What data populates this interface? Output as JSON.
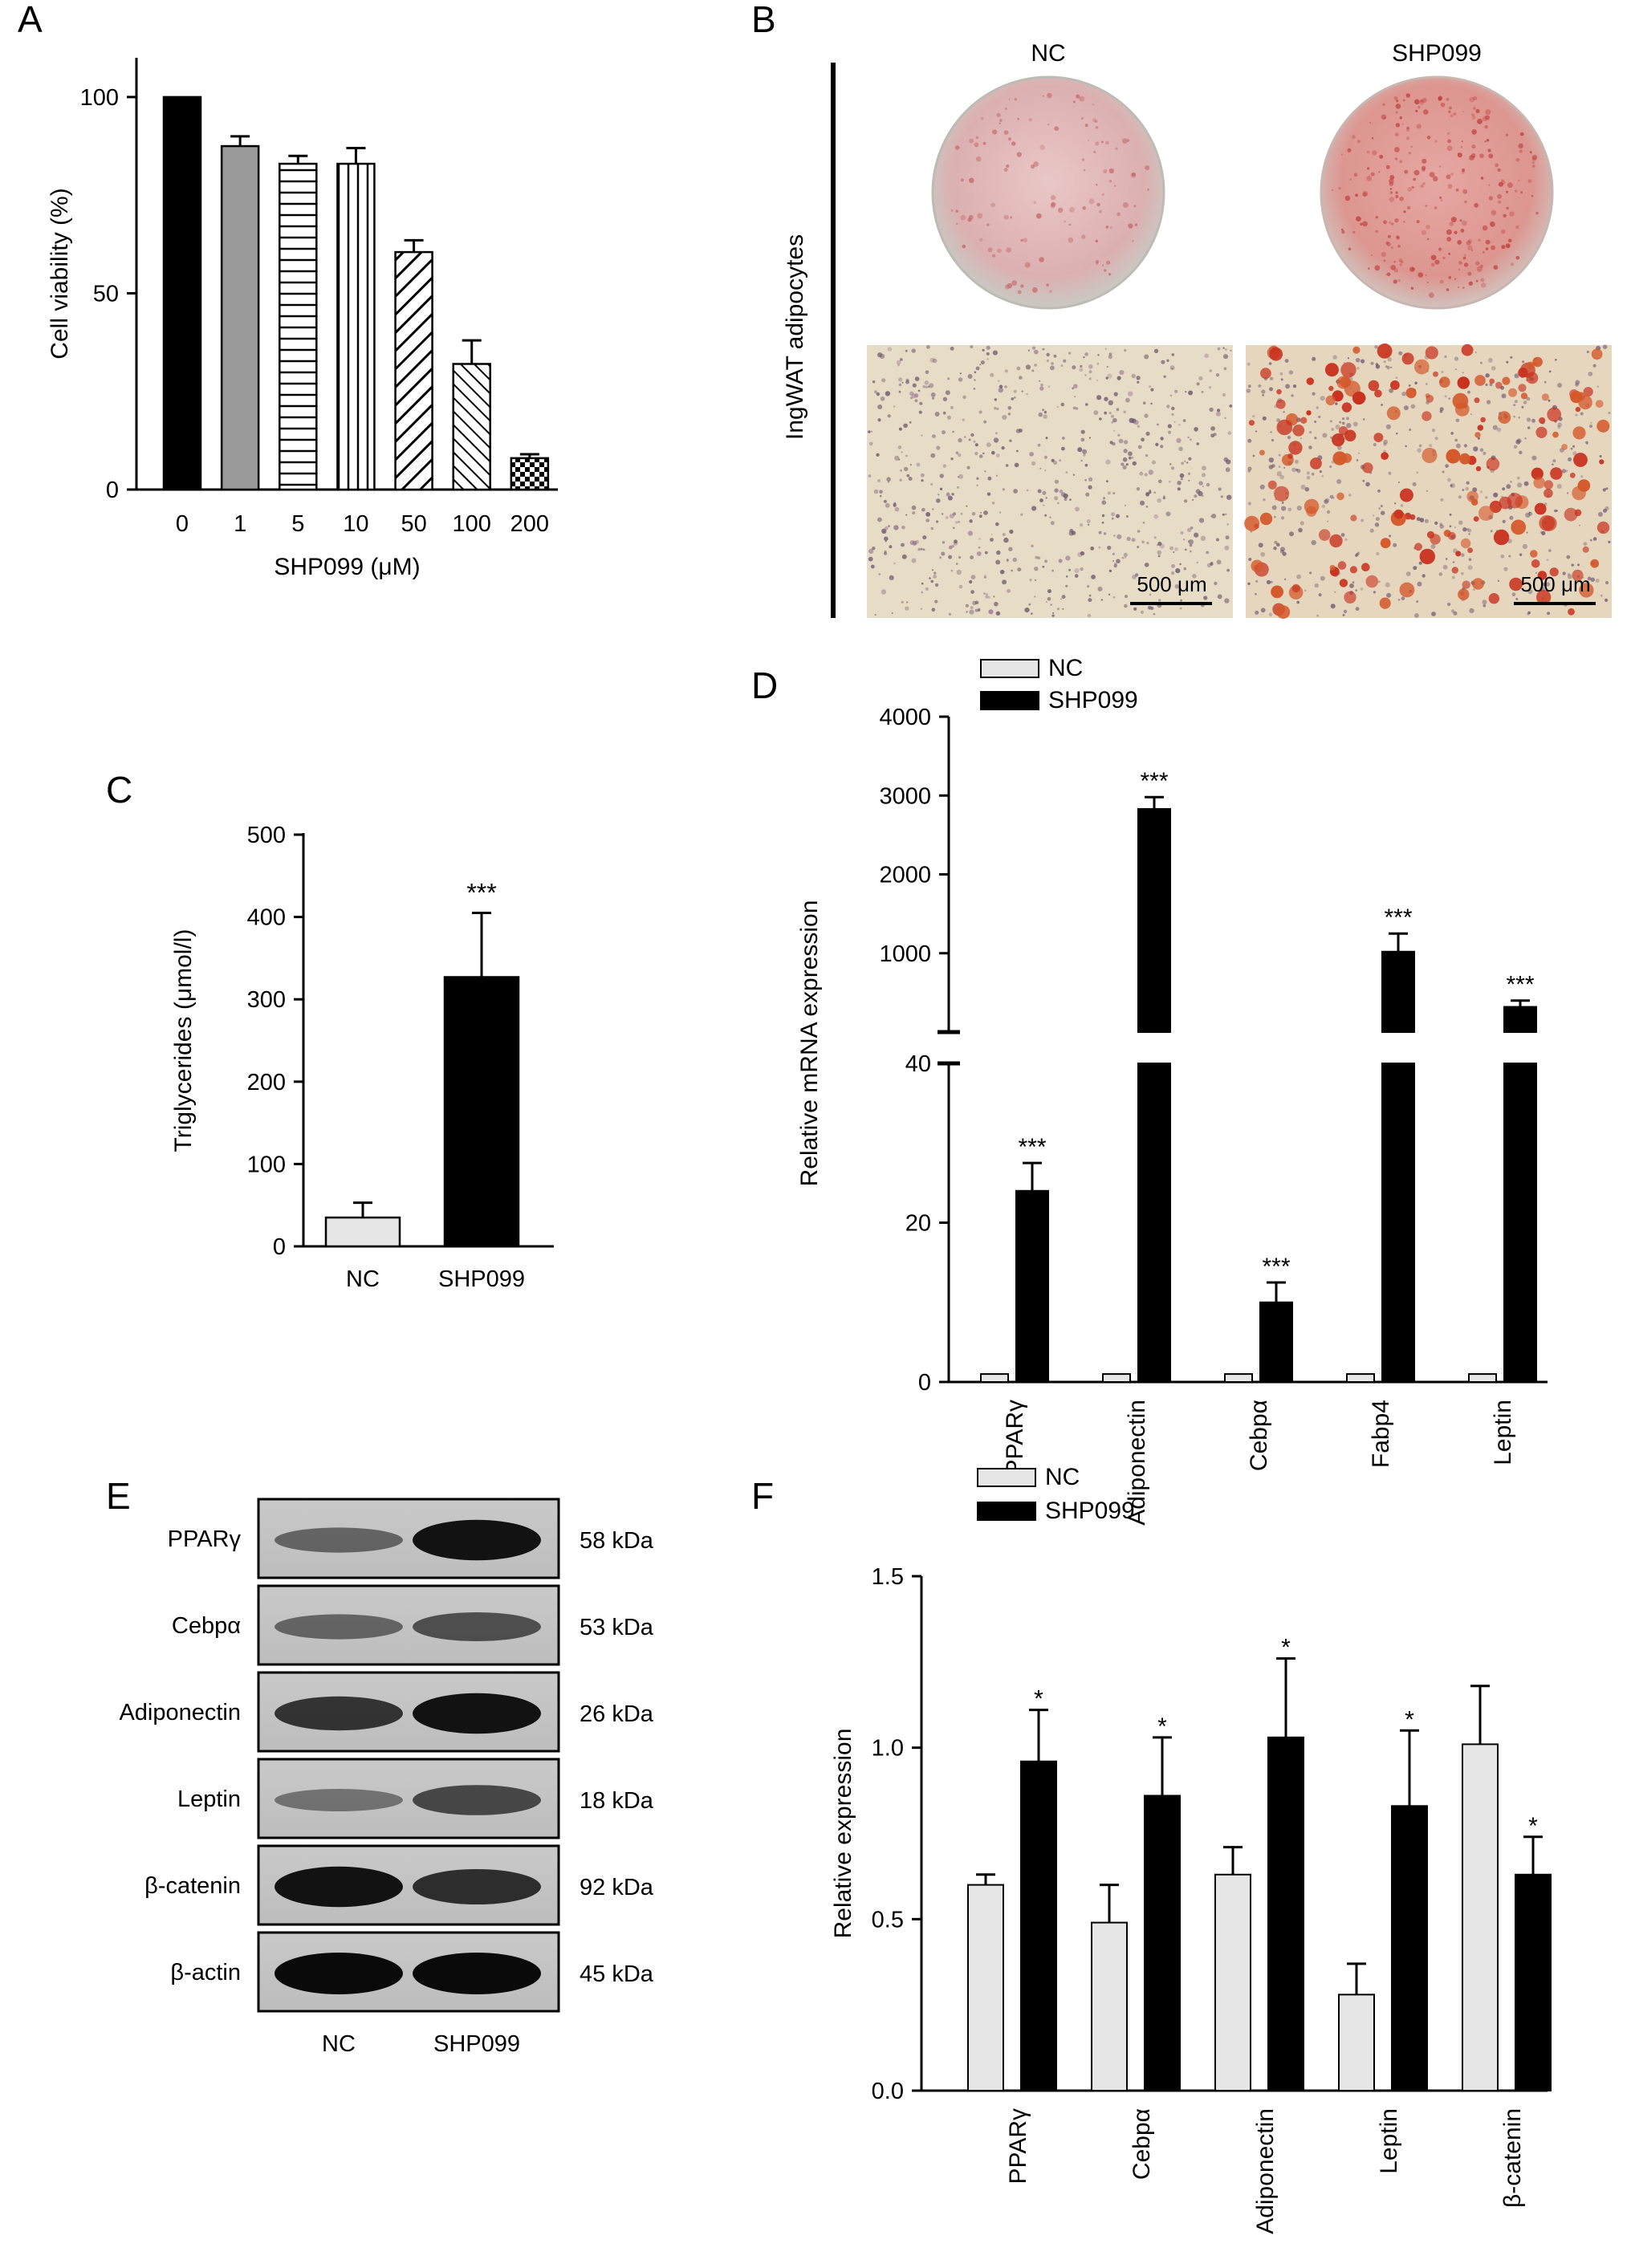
{
  "panel_labels": {
    "a": "A",
    "b": "B",
    "c": "C",
    "d": "D",
    "e": "E",
    "f": "F"
  },
  "panel_b": {
    "ylabel": "IngWAT adipocytes",
    "col_labels": [
      "NC",
      "SHP099"
    ],
    "scale_bar": "500 μm"
  },
  "panel_e": {
    "bands": [
      {
        "name": "PPARγ",
        "size": "58 kDa"
      },
      {
        "name": "Cebpα",
        "size": "53 kDa"
      },
      {
        "name": "Adiponectin",
        "size": "26 kDa"
      },
      {
        "name": "Leptin",
        "size": "18 kDa"
      },
      {
        "name": "β-catenin",
        "size": "92 kDa"
      },
      {
        "name": "β-actin",
        "size": "45 kDa"
      }
    ],
    "lanes": [
      "NC",
      "SHP099"
    ]
  },
  "colors": {
    "nc": "#e6e6e6",
    "shp099": "#000000",
    "gray_bar": "#9a9a9a"
  },
  "chart_data": [
    {
      "id": "A",
      "type": "bar",
      "categories": [
        "0",
        "1",
        "5",
        "10",
        "50",
        "100",
        "200"
      ],
      "values": [
        100,
        87.5,
        83,
        83,
        60.5,
        32,
        8
      ],
      "errors": [
        0,
        2.5,
        2,
        4,
        3,
        6,
        1
      ],
      "patterns": [
        "solid",
        "gray",
        "hlines",
        "vlines",
        "diag",
        "diag-dense",
        "checker"
      ],
      "xlabel": "SHP099 (μM)",
      "ylabel": "Cell viability (%)",
      "ylim": [
        0,
        110
      ],
      "yticks": [
        0,
        50,
        100
      ]
    },
    {
      "id": "C",
      "type": "bar",
      "categories": [
        "NC",
        "SHP099"
      ],
      "values": [
        35,
        327
      ],
      "errors": [
        18,
        78
      ],
      "significance": [
        "",
        "***"
      ],
      "ylabel": "Triglycerides (μmol/l)",
      "ylim": [
        0,
        500
      ],
      "yticks": [
        0,
        100,
        200,
        300,
        400,
        500
      ]
    },
    {
      "id": "D",
      "type": "bar",
      "categories": [
        "PPARγ",
        "Adiponectin",
        "Cebpα",
        "Fabp4",
        "Leptin"
      ],
      "series": [
        {
          "name": "NC",
          "values": [
            1,
            1,
            1,
            1,
            1
          ],
          "errors": [
            0,
            0,
            0,
            0,
            0
          ]
        },
        {
          "name": "SHP099",
          "values": [
            24,
            2830,
            10,
            1020,
            320
          ],
          "errors": [
            3.5,
            150,
            2.5,
            230,
            80
          ]
        }
      ],
      "significance": [
        "***",
        "***",
        "***",
        "***",
        "***"
      ],
      "ylabel": "Relative mRNA expression",
      "ylim_lower": [
        0,
        40
      ],
      "yticks_lower": [
        0,
        20,
        40
      ],
      "ylim_upper": [
        0,
        4000
      ],
      "yticks_upper": [
        1000,
        2000,
        3000,
        4000
      ]
    },
    {
      "id": "F",
      "type": "bar",
      "categories": [
        "PPARγ",
        "Cebpα",
        "Adiponectin",
        "Leptin",
        "β-catenin"
      ],
      "series": [
        {
          "name": "NC",
          "values": [
            0.6,
            0.49,
            0.63,
            0.28,
            1.01
          ],
          "errors": [
            0.03,
            0.11,
            0.08,
            0.09,
            0.17
          ]
        },
        {
          "name": "SHP099",
          "values": [
            0.96,
            0.86,
            1.03,
            0.83,
            0.63
          ],
          "errors": [
            0.15,
            0.17,
            0.23,
            0.22,
            0.11
          ]
        }
      ],
      "significance": [
        "*",
        "*",
        "*",
        "*",
        "*"
      ],
      "ylabel": "Relative expression",
      "ylim": [
        0,
        1.5
      ],
      "yticks": [
        "0.0",
        "0.5",
        "1.0",
        "1.5"
      ]
    }
  ]
}
